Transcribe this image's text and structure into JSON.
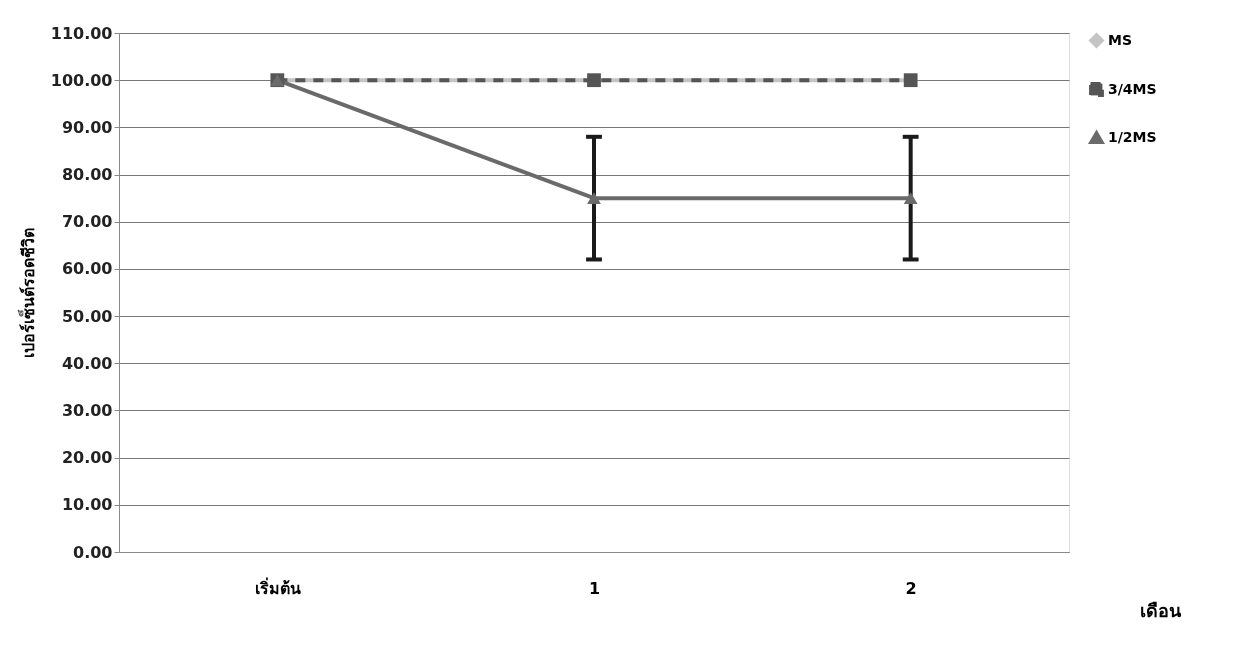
{
  "chart_data": {
    "type": "line",
    "categories": [
      "เริ่มต้น",
      "1",
      "2"
    ],
    "series": [
      {
        "name": "MS",
        "color": "#c4c4c4",
        "values": [
          100,
          100,
          100
        ],
        "marker": "diamond",
        "line_style": "solid"
      },
      {
        "name": "3/4MS",
        "color": "#555555",
        "values": [
          100,
          100,
          100
        ],
        "marker": "square",
        "line_style": "dashed"
      },
      {
        "name": "1/2MS",
        "color": "#6a6a6a",
        "values": [
          100,
          75,
          75
        ],
        "errors": [
          null,
          13,
          13
        ],
        "marker": "triangle",
        "line_style": "solid"
      }
    ],
    "ylabel": "เปอร์เซ็นต์รอดชีวิต",
    "xlabel": "เดือน",
    "ylim": [
      0,
      110
    ],
    "yticks": [
      {
        "value": 0,
        "label": "0.00"
      },
      {
        "value": 10,
        "label": "10.00"
      },
      {
        "value": 20,
        "label": "20.00"
      },
      {
        "value": 30,
        "label": "30.00"
      },
      {
        "value": 40,
        "label": "40.00"
      },
      {
        "value": 50,
        "label": "50.00"
      },
      {
        "value": 60,
        "label": "60.00"
      },
      {
        "value": 70,
        "label": "70.00"
      },
      {
        "value": 80,
        "label": "80.00"
      },
      {
        "value": 90,
        "label": "90.00"
      },
      {
        "value": 100,
        "label": "100.00"
      },
      {
        "value": 110,
        "label": "110.00"
      }
    ],
    "grid": "y",
    "legend": "top right"
  }
}
